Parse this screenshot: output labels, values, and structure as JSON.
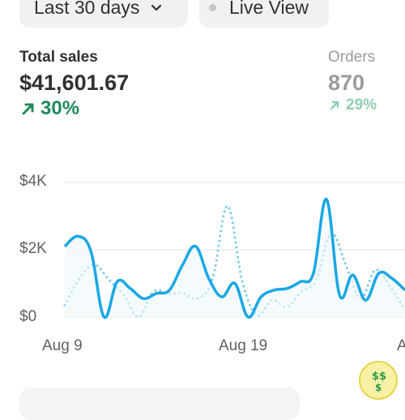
{
  "toolbar": {
    "date_range": "Last 30 days",
    "live_view": "Live View",
    "chevron_icon": "chevron-down-icon"
  },
  "metrics": {
    "total_sales": {
      "label": "Total sales",
      "value": "$41,601.67",
      "change": "30%",
      "trend": "up",
      "color": "#1f8a5a"
    },
    "orders": {
      "label": "Orders",
      "value": "870",
      "change": "29%",
      "trend": "up",
      "color": "#8fcfae"
    }
  },
  "colors": {
    "current_series": "#1aa7e6",
    "comparison_series": "#7ecbea",
    "grid": "#e6e6e6"
  },
  "chart_data": {
    "type": "line",
    "title": "",
    "xlabel": "",
    "ylabel": "",
    "ylim": [
      0,
      4000
    ],
    "y_tick_labels": [
      "$4K",
      "$2K",
      "$0"
    ],
    "x_tick_labels": [
      "Aug 9",
      "Aug 19",
      "A"
    ],
    "series": [
      {
        "role": "current",
        "style": "solid",
        "values": [
          2100,
          2400,
          1950,
          0,
          1050,
          850,
          550,
          700,
          800,
          1550,
          2100,
          1150,
          600,
          1000,
          0,
          600,
          800,
          850,
          1050,
          1300,
          3500,
          650,
          1250,
          500,
          1300,
          1150,
          800
        ]
      },
      {
        "role": "comparison",
        "style": "dotted",
        "values": [
          350,
          1150,
          1550,
          1100,
          650,
          0,
          750,
          700,
          700,
          550,
          1150,
          3300,
          1050,
          50,
          500,
          300,
          750,
          1100,
          2500,
          1550,
          550,
          1400,
          900,
          200
        ]
      }
    ]
  }
}
